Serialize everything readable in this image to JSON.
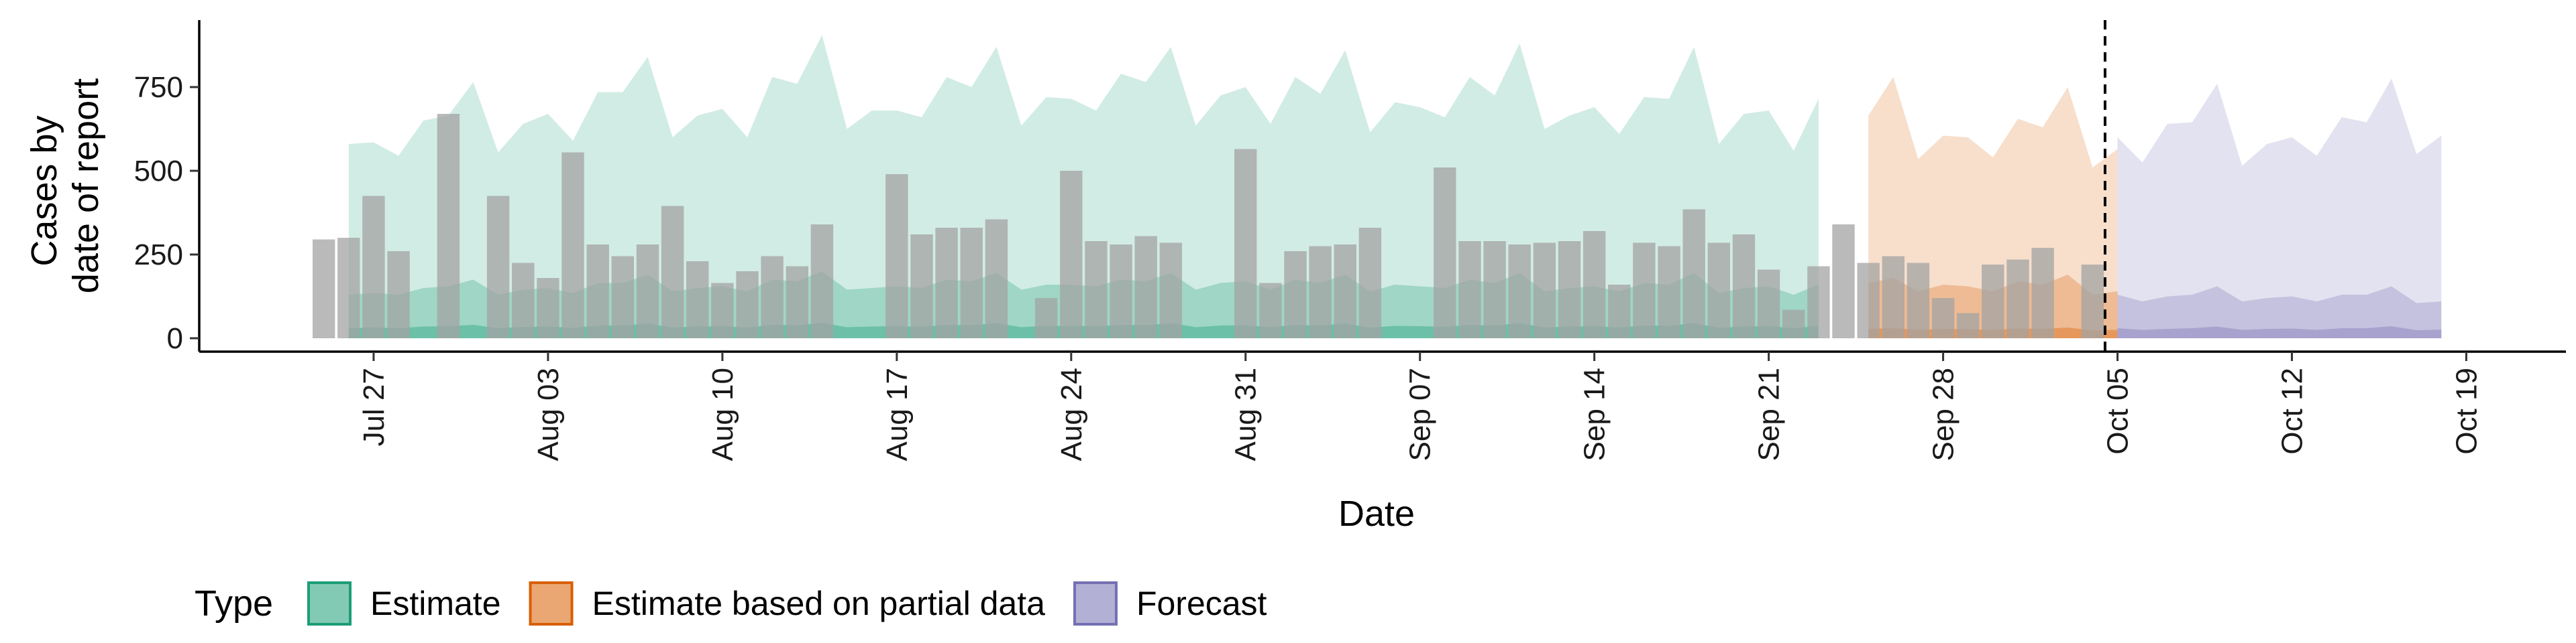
{
  "chart_data": {
    "type": "bar",
    "xlabel": "Date",
    "ylabel_lines": [
      "Cases by",
      "date of report"
    ],
    "xlim": [
      "2020-07-20",
      "2020-10-23"
    ],
    "ylim": [
      -40,
      950
    ],
    "y_ticks": [
      0,
      250,
      500,
      750
    ],
    "x_ticks": [
      {
        "date": "2020-07-27",
        "label": "Jul 27"
      },
      {
        "date": "2020-08-03",
        "label": "Aug 03"
      },
      {
        "date": "2020-08-10",
        "label": "Aug 10"
      },
      {
        "date": "2020-08-17",
        "label": "Aug 17"
      },
      {
        "date": "2020-08-24",
        "label": "Aug 24"
      },
      {
        "date": "2020-08-31",
        "label": "Aug 31"
      },
      {
        "date": "2020-09-07",
        "label": "Sep 07"
      },
      {
        "date": "2020-09-14",
        "label": "Sep 14"
      },
      {
        "date": "2020-09-21",
        "label": "Sep 21"
      },
      {
        "date": "2020-09-28",
        "label": "Sep 28"
      },
      {
        "date": "2020-10-05",
        "label": "Oct 05"
      },
      {
        "date": "2020-10-12",
        "label": "Oct 12"
      },
      {
        "date": "2020-10-19",
        "label": "Oct 19"
      }
    ],
    "reported_cases": {
      "start_date": "2020-07-25",
      "values": [
        295,
        300,
        425,
        260,
        0,
        670,
        0,
        425,
        225,
        180,
        555,
        280,
        245,
        280,
        395,
        230,
        165,
        200,
        245,
        215,
        340,
        0,
        0,
        490,
        310,
        330,
        330,
        355,
        0,
        120,
        500,
        290,
        280,
        305,
        285,
        0,
        0,
        565,
        165,
        260,
        275,
        280,
        330,
        0,
        0,
        510,
        290,
        290,
        280,
        285,
        290,
        320,
        160,
        285,
        275,
        385,
        285,
        310,
        205,
        85,
        215,
        340,
        225,
        245,
        225,
        120,
        75,
        220,
        235,
        270,
        0,
        220
      ],
      "color": "#a3a3a3"
    },
    "vline_date": "2020-10-04",
    "series": [
      {
        "name": "Estimate",
        "color": "#1b9e77",
        "start_date": "2020-07-26",
        "upper90": [
          580,
          585,
          545,
          650,
          665,
          765,
          555,
          640,
          670,
          590,
          735,
          735,
          840,
          600,
          665,
          685,
          600,
          780,
          760,
          905,
          625,
          680,
          680,
          660,
          780,
          750,
          870,
          635,
          720,
          715,
          680,
          790,
          765,
          870,
          635,
          725,
          750,
          640,
          780,
          730,
          860,
          615,
          705,
          690,
          660,
          780,
          725,
          880,
          625,
          665,
          690,
          610,
          720,
          715,
          870,
          580,
          670,
          680,
          560,
          715
        ],
        "upper50": [
          130,
          135,
          130,
          150,
          155,
          175,
          130,
          145,
          150,
          135,
          165,
          165,
          190,
          140,
          150,
          155,
          140,
          175,
          170,
          200,
          145,
          150,
          155,
          150,
          175,
          170,
          195,
          145,
          160,
          160,
          155,
          175,
          170,
          195,
          145,
          165,
          170,
          145,
          175,
          165,
          190,
          140,
          160,
          155,
          150,
          175,
          165,
          195,
          140,
          150,
          155,
          140,
          165,
          160,
          195,
          135,
          150,
          155,
          130,
          160
        ],
        "upper20": [
          30,
          32,
          30,
          35,
          36,
          40,
          30,
          34,
          35,
          31,
          38,
          38,
          44,
          32,
          35,
          36,
          32,
          40,
          39,
          46,
          33,
          35,
          36,
          34,
          40,
          39,
          45,
          33,
          37,
          37,
          36,
          40,
          39,
          45,
          33,
          38,
          39,
          33,
          40,
          38,
          44,
          32,
          37,
          36,
          34,
          40,
          38,
          45,
          32,
          35,
          36,
          32,
          38,
          37,
          45,
          31,
          35,
          36,
          30,
          37
        ]
      },
      {
        "name": "Estimate based on partial data",
        "color": "#d95f02",
        "start_date": "2020-09-25",
        "upper90": [
          665,
          780,
          535,
          605,
          600,
          540,
          655,
          630,
          750,
          510,
          565
        ],
        "upper50": [
          165,
          180,
          140,
          160,
          155,
          140,
          170,
          160,
          190,
          130,
          140
        ],
        "upper20": [
          28,
          30,
          25,
          28,
          27,
          25,
          29,
          28,
          32,
          24,
          25
        ]
      },
      {
        "name": "Forecast",
        "color": "#7570b3",
        "start_date": "2020-10-05",
        "upper90": [
          600,
          525,
          640,
          645,
          760,
          515,
          580,
          600,
          545,
          660,
          645,
          775,
          550,
          605
        ],
        "upper50": [
          130,
          110,
          125,
          130,
          155,
          110,
          120,
          125,
          110,
          130,
          130,
          155,
          105,
          110
        ],
        "upper20": [
          30,
          25,
          28,
          30,
          35,
          25,
          28,
          29,
          25,
          30,
          30,
          36,
          24,
          26
        ]
      }
    ],
    "legend": {
      "title": "Type",
      "placement": "bottom-left",
      "entries": [
        "Estimate",
        "Estimate based on partial data",
        "Forecast"
      ]
    }
  }
}
